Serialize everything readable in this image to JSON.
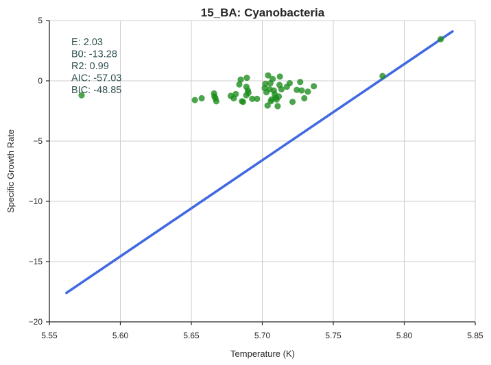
{
  "chart_data": {
    "type": "scatter",
    "title": "15_BA: Cyanobacteria",
    "xlabel": "Temperature (K)",
    "ylabel": "Specific Growth Rate",
    "xlim": [
      5.55,
      5.85
    ],
    "ylim": [
      -20,
      5
    ],
    "xticks": [
      5.55,
      5.6,
      5.65,
      5.7,
      5.75,
      5.8,
      5.85
    ],
    "xtick_labels": [
      "5.55",
      "5.60",
      "5.65",
      "5.70",
      "5.75",
      "5.80",
      "5.85"
    ],
    "yticks": [
      5,
      0,
      -5,
      -10,
      -15,
      -20
    ],
    "ytick_labels": [
      "5",
      "0",
      "−5",
      "−10",
      "−15",
      "−20"
    ],
    "grid": true,
    "colors": {
      "scatter": "#1a8c1a",
      "line": "#4169e1",
      "stats": "#2f4f4f"
    },
    "series": [
      {
        "kind": "line",
        "x": [
          5.562,
          5.834
        ],
        "y": [
          -17.6,
          4.1
        ]
      },
      {
        "kind": "scatter",
        "x": [
          5.5727,
          5.6525,
          5.6573,
          5.666,
          5.6663,
          5.667,
          5.6676,
          5.6778,
          5.6799,
          5.6813,
          5.6838,
          5.6848,
          5.6857,
          5.6864,
          5.6887,
          5.6888,
          5.6891,
          5.6898,
          5.6902,
          5.6929,
          5.6963,
          5.7017,
          5.7022,
          5.7029,
          5.7037,
          5.7041,
          5.7052,
          5.7057,
          5.706,
          5.7065,
          5.7073,
          5.7081,
          5.7087,
          5.7093,
          5.7101,
          5.7108,
          5.7116,
          5.7121,
          5.7124,
          5.7135,
          5.7173,
          5.7193,
          5.7213,
          5.7243,
          5.7267,
          5.7277,
          5.7296,
          5.7321,
          5.7363,
          5.7847,
          5.8257
        ],
        "y": [
          -1.2,
          -1.6,
          -1.45,
          -1.05,
          -1.3,
          -1.45,
          -1.7,
          -1.25,
          -1.45,
          -1.1,
          -0.3,
          0.1,
          -1.7,
          -1.75,
          -1.2,
          -0.5,
          0.25,
          -0.8,
          -1.0,
          -1.5,
          -1.5,
          -0.6,
          -0.25,
          -0.95,
          -2.05,
          0.45,
          -0.7,
          -0.2,
          -1.7,
          -1.55,
          0.15,
          -0.8,
          -1.1,
          -1.4,
          -1.55,
          -2.1,
          -1.3,
          -0.35,
          0.35,
          -0.7,
          -0.5,
          -0.2,
          -1.75,
          -0.75,
          -0.1,
          -0.8,
          -1.45,
          -0.9,
          -0.45,
          0.4,
          3.45
        ]
      }
    ],
    "annotation": {
      "position": "top-left",
      "lines": [
        "E:  2.03",
        "B0:  -13.28",
        "R2:  0.99",
        "AIC: -57.03",
        "BIC: -48.85"
      ]
    }
  }
}
